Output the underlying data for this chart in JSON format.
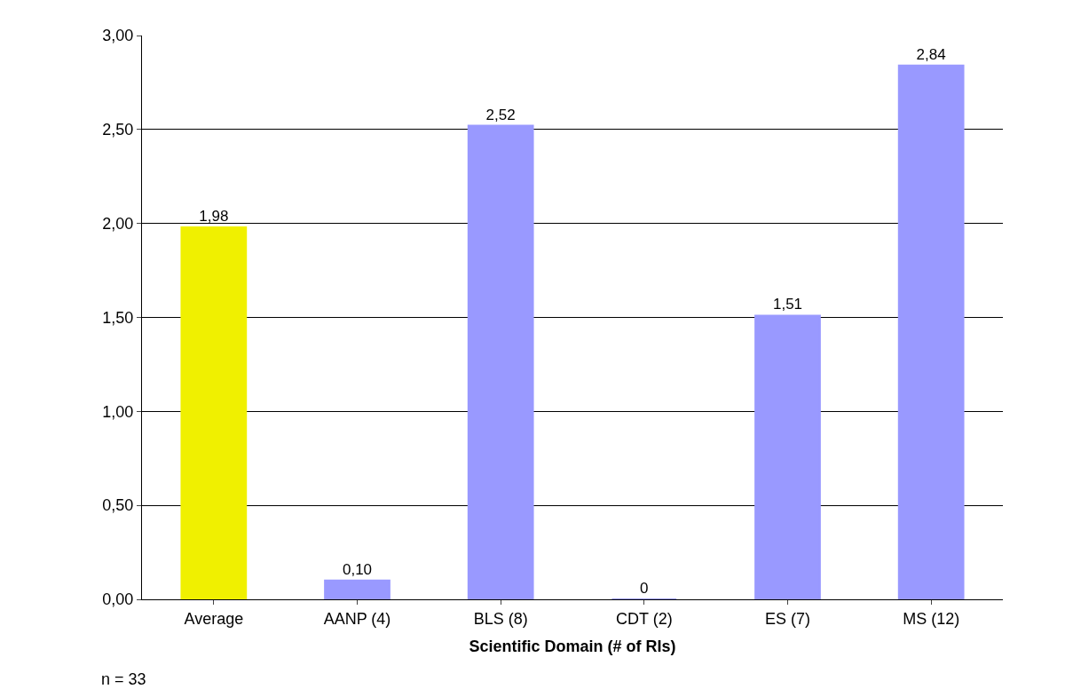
{
  "chart_data": {
    "type": "bar",
    "xlabel": "Scientific Domain (# of RIs)",
    "categories": [
      "Average",
      "AANP (4)",
      "BLS (8)",
      "CDT (2)",
      "ES (7)",
      "MS (12)"
    ],
    "values": [
      1.98,
      0.1,
      2.52,
      0,
      1.51,
      2.84
    ],
    "value_labels": [
      "1,98",
      "0,10",
      "2,52",
      "0",
      "1,51",
      "2,84"
    ],
    "colors": [
      "#f0f000",
      "#9999ff",
      "#9999ff",
      "#9999ff",
      "#9999ff",
      "#9999ff"
    ],
    "ylim": [
      0,
      3
    ],
    "yticks": [
      {
        "value": 0,
        "label": "0,00"
      },
      {
        "value": 0.5,
        "label": "0,50"
      },
      {
        "value": 1,
        "label": "1,00"
      },
      {
        "value": 1.5,
        "label": "1,50"
      },
      {
        "value": 2,
        "label": "2,00"
      },
      {
        "value": 2.5,
        "label": "2,50"
      },
      {
        "value": 3,
        "label": "3,00"
      }
    ],
    "grid": "y",
    "annotations": [
      "n = 33"
    ]
  }
}
